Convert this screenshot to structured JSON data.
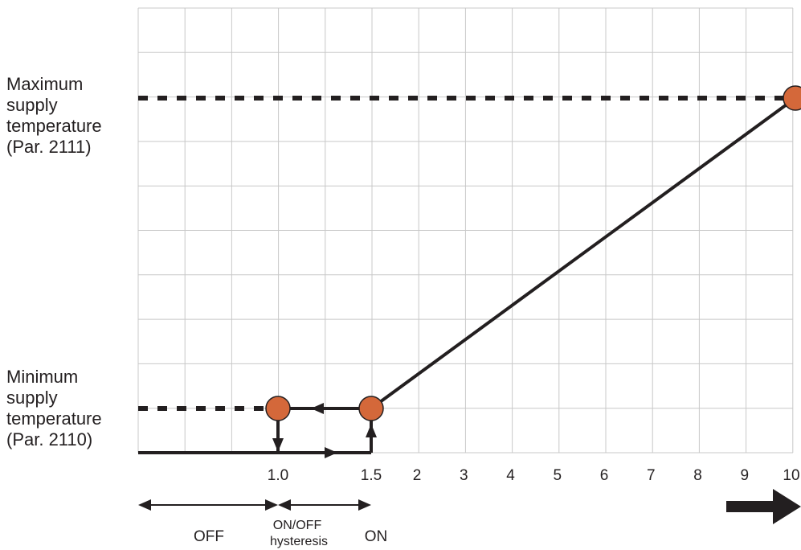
{
  "y_labels": {
    "maximum": {
      "line1": "Maximum",
      "line2": "supply",
      "line3": "temperature",
      "line4": "(Par. 2111)"
    },
    "minimum": {
      "line1": "Minimum",
      "line2": "supply",
      "line3": "temperature",
      "line4": "(Par. 2110)"
    }
  },
  "x_ticks": [
    "1.0",
    "1.5",
    "2",
    "3",
    "4",
    "5",
    "6",
    "7",
    "8",
    "9",
    "10"
  ],
  "x_tick_values": [
    1.0,
    1.5,
    2,
    3,
    4,
    5,
    6,
    7,
    8,
    9,
    10
  ],
  "zones": {
    "off": "OFF",
    "hysteresis_line1": "ON/OFF",
    "hysteresis_line2": "hysteresis",
    "on": "ON"
  },
  "curve": {
    "off_point": 1.0,
    "on_point": 1.5,
    "max_point": 10
  },
  "colors": {
    "line": "#231f20",
    "grid": "#c8c8c8",
    "marker_fill": "#d4683a",
    "marker_stroke": "#231f20"
  },
  "icons": {
    "direction_arrow": "right-arrow-icon"
  }
}
